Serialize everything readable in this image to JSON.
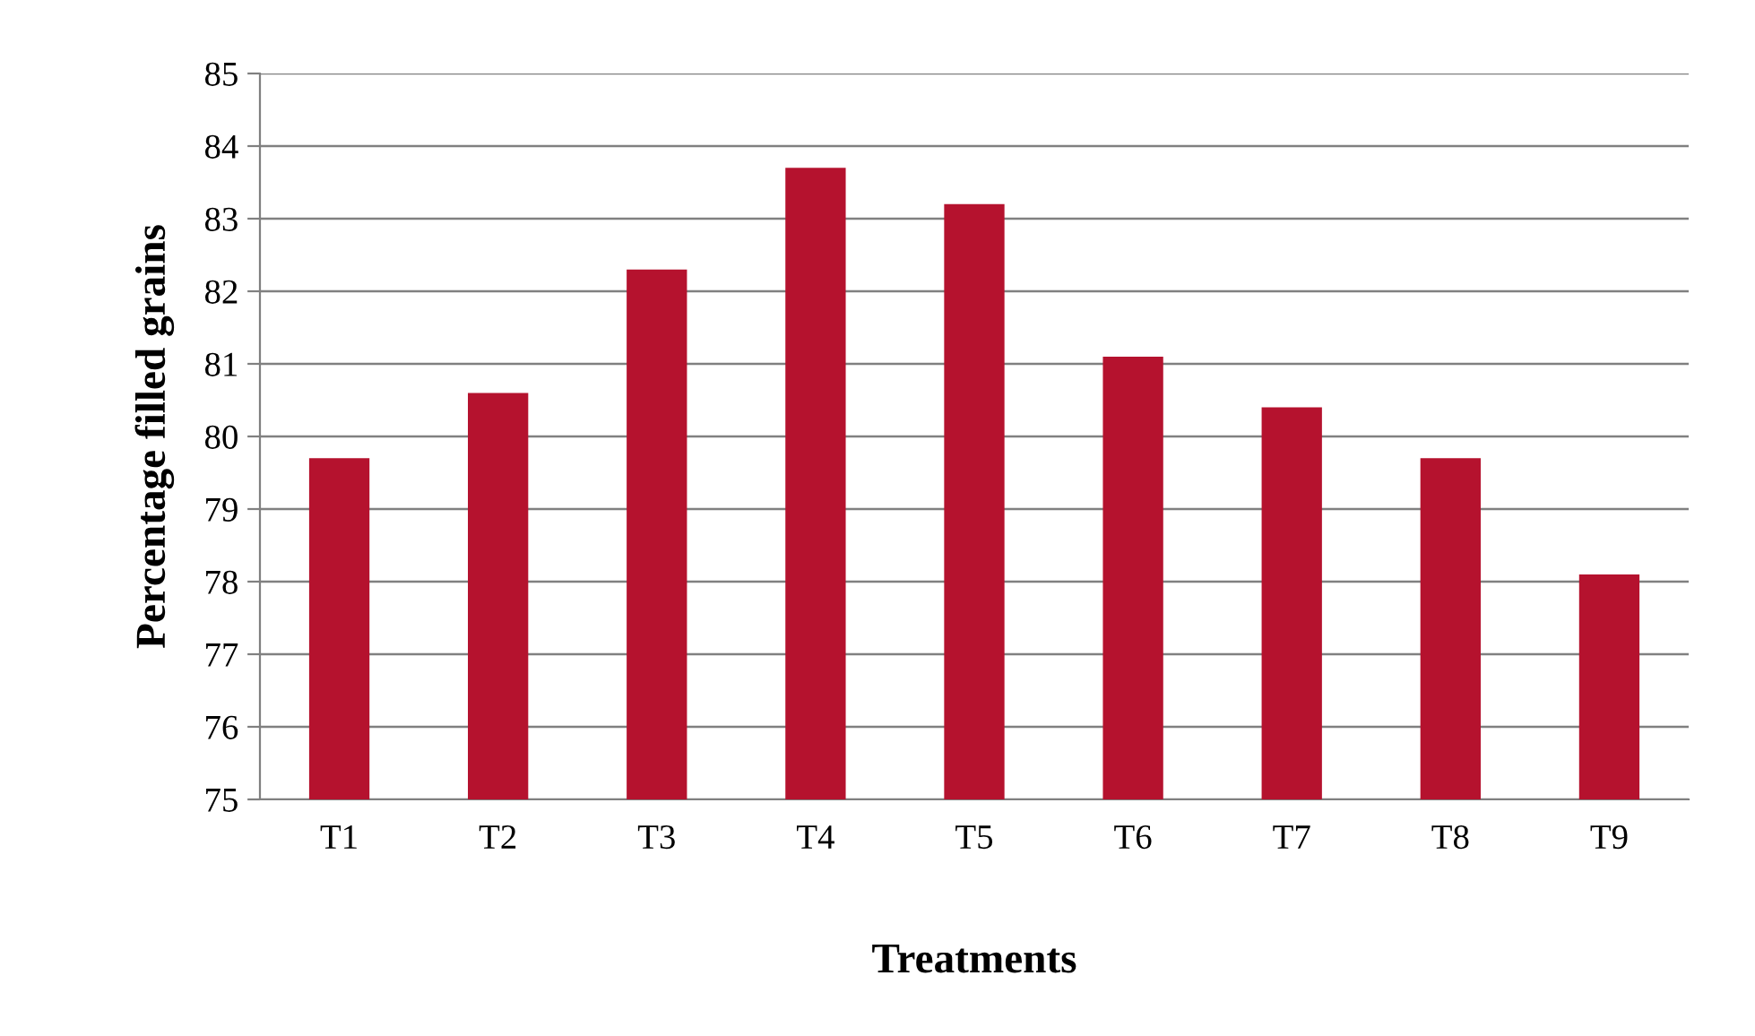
{
  "chart_data": {
    "type": "bar",
    "xlabel": "Treatments",
    "ylabel": "Percentage filled grains",
    "categories": [
      "T1",
      "T2",
      "T3",
      "T4",
      "T5",
      "T6",
      "T7",
      "T8",
      "T9"
    ],
    "values": [
      79.7,
      80.6,
      82.3,
      83.7,
      83.2,
      81.1,
      80.4,
      79.7,
      78.1
    ],
    "color": "#b5122e",
    "ylim": [
      75,
      85
    ],
    "yticks": [
      75,
      76,
      77,
      78,
      79,
      80,
      81,
      82,
      83,
      84,
      85
    ],
    "grid": "y"
  }
}
